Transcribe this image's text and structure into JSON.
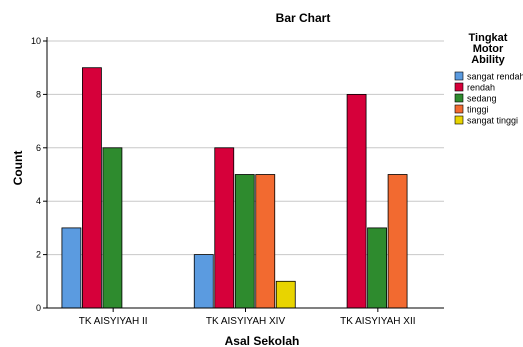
{
  "chart_data": {
    "type": "bar",
    "title": "Bar Chart",
    "xlabel": "Asal Sekolah",
    "ylabel": "Count",
    "ylim": [
      0,
      10
    ],
    "yticks": [
      0,
      2,
      4,
      6,
      8,
      10
    ],
    "grid": true,
    "legend_title": [
      "Tingkat",
      "Motor",
      "Ability"
    ],
    "legend_position": "right",
    "categories": [
      "TK AISYIYAH II",
      "TK AISYIYAH XIV",
      "TK AISYIYAH XII"
    ],
    "series": [
      {
        "name": "sangat rendah",
        "color": "#5b9be0",
        "values": [
          3,
          2,
          null
        ]
      },
      {
        "name": "rendah",
        "color": "#d6003a",
        "values": [
          9,
          6,
          8
        ]
      },
      {
        "name": "sedang",
        "color": "#2e8b2e",
        "values": [
          6,
          5,
          3
        ]
      },
      {
        "name": "tinggi",
        "color": "#f26a30",
        "values": [
          null,
          5,
          5
        ]
      },
      {
        "name": "sangat tinggi",
        "color": "#e8d400",
        "values": [
          null,
          1,
          null
        ]
      }
    ]
  }
}
